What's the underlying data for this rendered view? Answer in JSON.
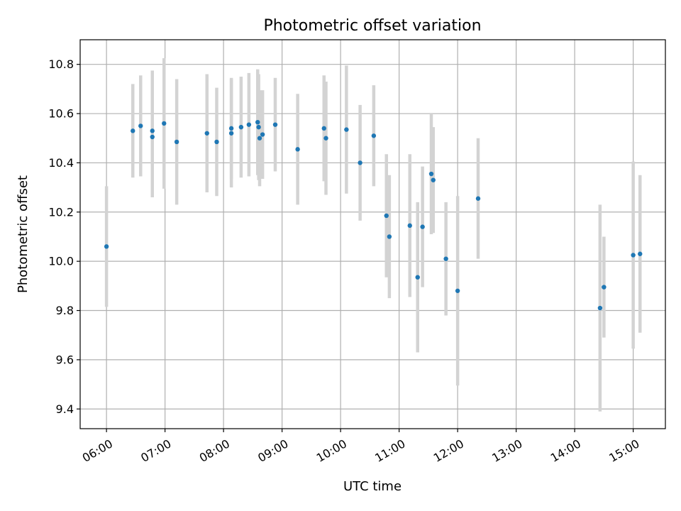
{
  "chart_data": {
    "type": "scatter",
    "title": "Photometric offset variation",
    "xlabel": "UTC time",
    "ylabel": "Photometric offset",
    "xlim": [
      "05:33",
      "15:33"
    ],
    "ylim": [
      9.32,
      10.9
    ],
    "grid": true,
    "x_ticks": [
      "06:00",
      "07:00",
      "08:00",
      "09:00",
      "10:00",
      "11:00",
      "12:00",
      "13:00",
      "14:00",
      "15:00"
    ],
    "y_ticks": [
      "9.4",
      "9.6",
      "9.8",
      "10.0",
      "10.2",
      "10.4",
      "10.6",
      "10.8"
    ],
    "colors": {
      "marker": "#1f77b4",
      "errorbar": "#d3d3d3",
      "grid": "#b0b0b0"
    },
    "series": [
      {
        "points": [
          {
            "x": "06:00",
            "y": 10.06,
            "err": 0.245
          },
          {
            "x": "06:27",
            "y": 10.53,
            "err": 0.19
          },
          {
            "x": "06:35",
            "y": 10.55,
            "err": 0.205
          },
          {
            "x": "06:47",
            "y": 10.53,
            "err": 0.245
          },
          {
            "x": "06:47",
            "y": 10.505,
            "err": 0.245
          },
          {
            "x": "06:59",
            "y": 10.56,
            "err": 0.265
          },
          {
            "x": "07:12",
            "y": 10.485,
            "err": 0.255
          },
          {
            "x": "07:43",
            "y": 10.52,
            "err": 0.24
          },
          {
            "x": "07:53",
            "y": 10.485,
            "err": 0.22
          },
          {
            "x": "08:08",
            "y": 10.52,
            "err": 0.22
          },
          {
            "x": "08:08",
            "y": 10.54,
            "err": 0.205
          },
          {
            "x": "08:18",
            "y": 10.545,
            "err": 0.205
          },
          {
            "x": "08:26",
            "y": 10.555,
            "err": 0.21
          },
          {
            "x": "08:35",
            "y": 10.565,
            "err": 0.215
          },
          {
            "x": "08:36",
            "y": 10.545,
            "err": 0.215
          },
          {
            "x": "08:37",
            "y": 10.5,
            "err": 0.195
          },
          {
            "x": "08:40",
            "y": 10.515,
            "err": 0.18
          },
          {
            "x": "08:53",
            "y": 10.555,
            "err": 0.19
          },
          {
            "x": "09:16",
            "y": 10.455,
            "err": 0.225
          },
          {
            "x": "09:43",
            "y": 10.54,
            "err": 0.215
          },
          {
            "x": "09:45",
            "y": 10.5,
            "err": 0.23
          },
          {
            "x": "10:06",
            "y": 10.535,
            "err": 0.26
          },
          {
            "x": "10:20",
            "y": 10.4,
            "err": 0.235
          },
          {
            "x": "10:34",
            "y": 10.51,
            "err": 0.205
          },
          {
            "x": "10:47",
            "y": 10.185,
            "err": 0.25
          },
          {
            "x": "10:50",
            "y": 10.1,
            "err": 0.25
          },
          {
            "x": "11:11",
            "y": 10.145,
            "err": 0.29
          },
          {
            "x": "11:19",
            "y": 9.935,
            "err": 0.305
          },
          {
            "x": "11:24",
            "y": 10.14,
            "err": 0.245
          },
          {
            "x": "11:33",
            "y": 10.355,
            "err": 0.245
          },
          {
            "x": "11:35",
            "y": 10.33,
            "err": 0.215
          },
          {
            "x": "11:48",
            "y": 10.01,
            "err": 0.23
          },
          {
            "x": "12:00",
            "y": 9.88,
            "err": 0.385
          },
          {
            "x": "12:21",
            "y": 10.255,
            "err": 0.245
          },
          {
            "x": "14:26",
            "y": 9.81,
            "err": 0.42
          },
          {
            "x": "14:30",
            "y": 9.895,
            "err": 0.205
          },
          {
            "x": "15:00",
            "y": 10.025,
            "err": 0.38
          },
          {
            "x": "15:07",
            "y": 10.03,
            "err": 0.32
          }
        ]
      }
    ]
  }
}
